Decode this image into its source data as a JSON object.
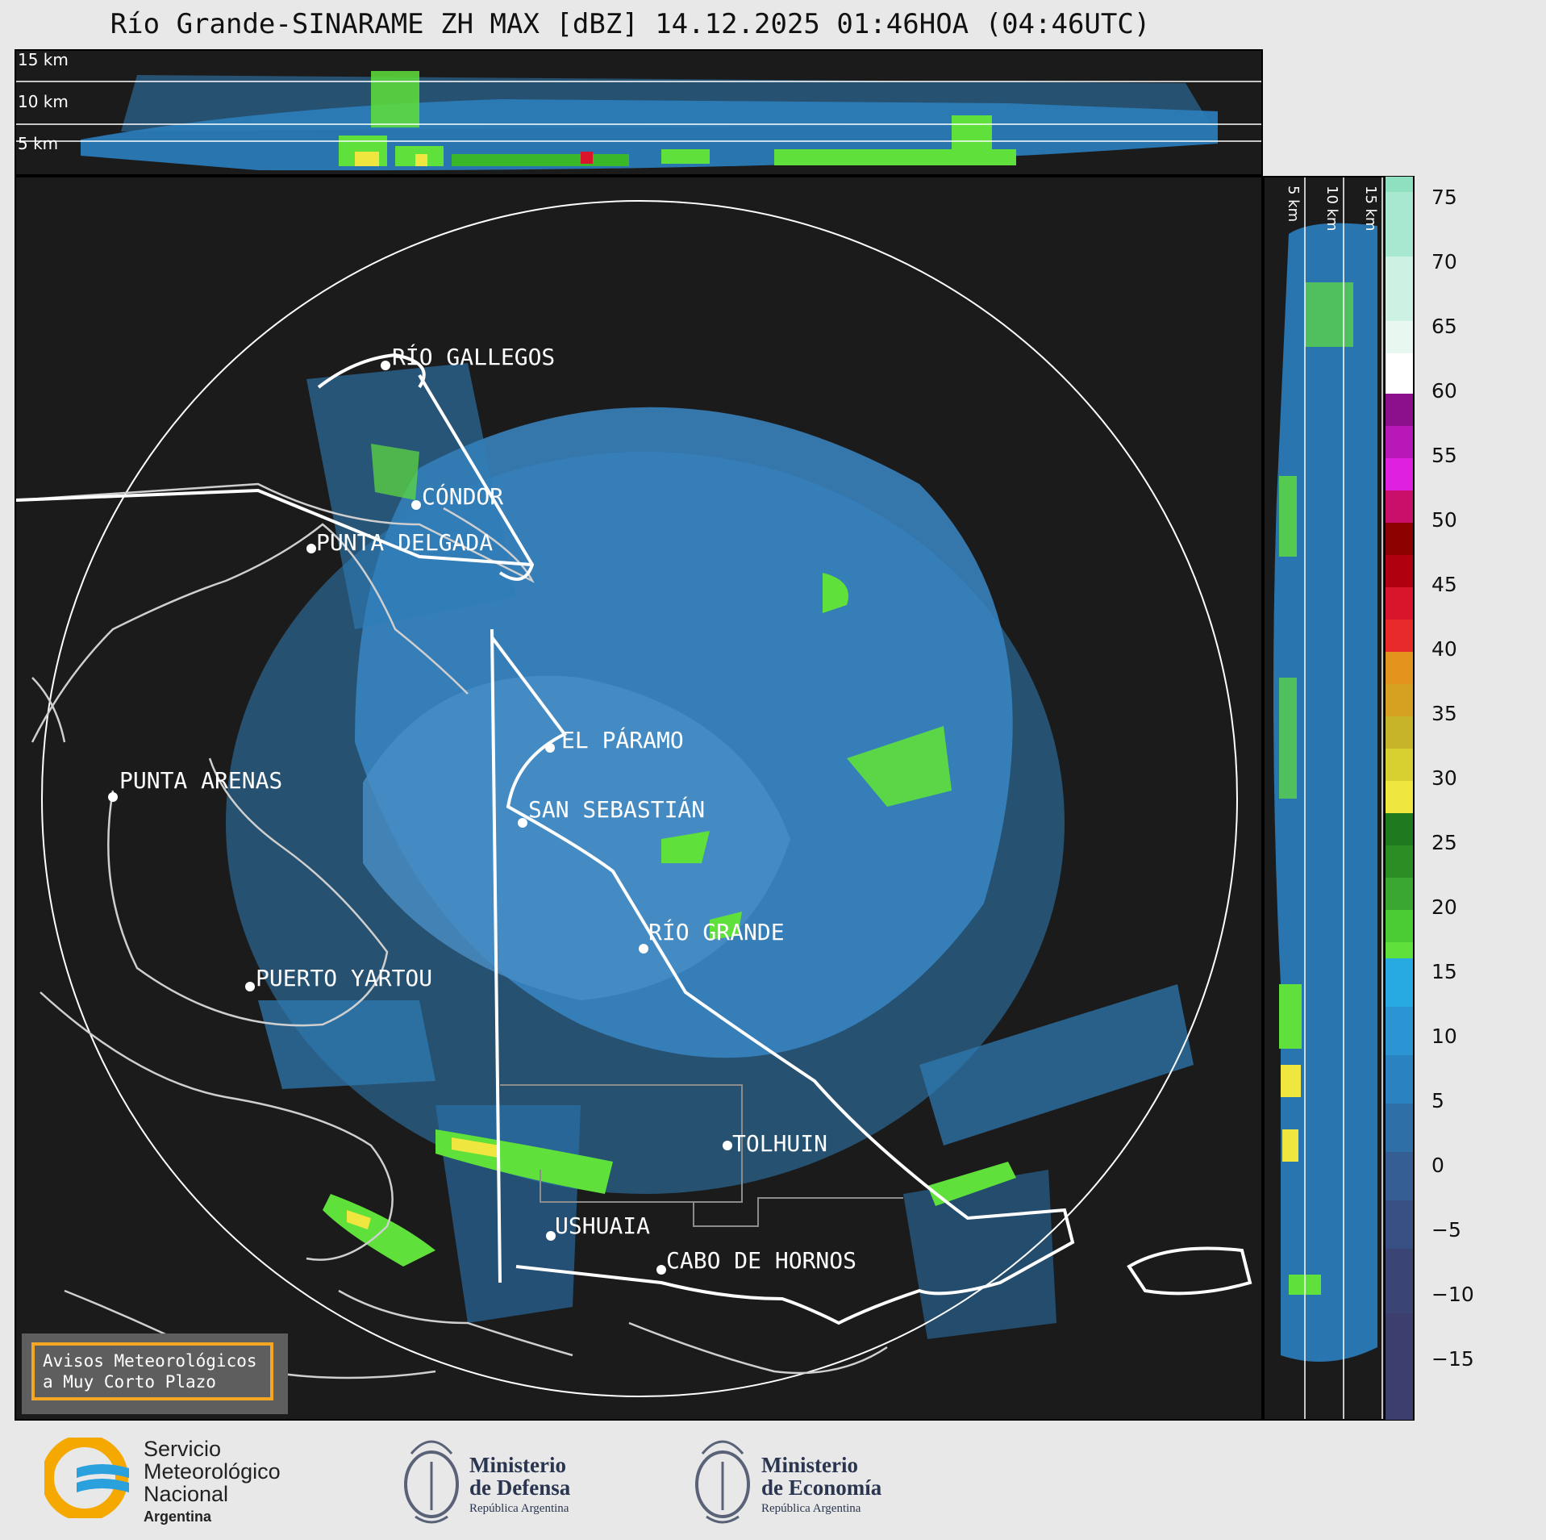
{
  "title": "Río Grande-SINARAME ZH MAX [dBZ] 14.12.2025 01:46HOA (04:46UTC)",
  "top_panel": {
    "height_labels": [
      "15 km",
      "10 km",
      "5 km"
    ]
  },
  "side_panel": {
    "height_labels": [
      "5 km",
      "10 km",
      "15 km"
    ]
  },
  "cities": [
    {
      "name": "RÍO GALLEGOS"
    },
    {
      "name": "CÓNDOR"
    },
    {
      "name": "PUNTA DELGADA"
    },
    {
      "name": "EL PÁRAMO"
    },
    {
      "name": "PUNTA ARENAS"
    },
    {
      "name": "SAN SEBASTIÁN"
    },
    {
      "name": "RÍO GRANDE"
    },
    {
      "name": "PUERTO YARTOU"
    },
    {
      "name": "TOLHUIN"
    },
    {
      "name": "USHUAIA"
    },
    {
      "name": "CABO DE HORNOS"
    }
  ],
  "colorbar": {
    "unit": "dBZ",
    "ticks": [
      "75",
      "70",
      "65",
      "60",
      "55",
      "50",
      "45",
      "40",
      "35",
      "30",
      "25",
      "20",
      "15",
      "10",
      "5",
      "0",
      "−5",
      "−10",
      "−15"
    ],
    "colors": {
      "low": "#3c3f6e",
      "blue": "#2b8fd0",
      "cyan": "#27a9e1",
      "green": "#5fe03a",
      "darkgreen": "#1f7a1f",
      "yellow": "#f0e640",
      "orange": "#e2941c",
      "red": "#d8152a",
      "darkred": "#8c0000",
      "magenta": "#e020e0",
      "purple": "#8c0f8c",
      "white": "#ffffff",
      "mint": "#8fe0c0"
    }
  },
  "avisos": {
    "line1": "Avisos Meteorológicos",
    "line2": "a Muy Corto Plazo"
  },
  "logos": {
    "smn": {
      "line1": "Servicio",
      "line2": "Meteorológico",
      "line3": "Nacional",
      "line4": "Argentina"
    },
    "defensa": {
      "line1": "Ministerio",
      "line2": "de Defensa",
      "line3": "República Argentina"
    },
    "economia": {
      "line1": "Ministerio",
      "line2": "de Economía",
      "line3": "República Argentina"
    }
  }
}
